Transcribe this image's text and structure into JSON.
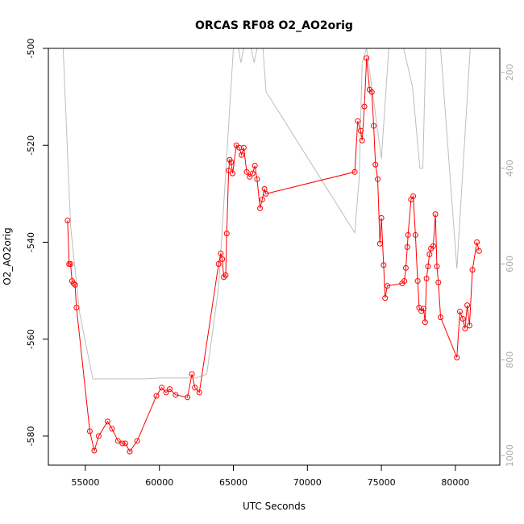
{
  "chart_data": {
    "type": "line",
    "title": "ORCAS RF08 O2_AO2orig",
    "xlabel": "UTC Seconds",
    "ylabel": "O2_AO2orig",
    "xlim": [
      52500,
      83000
    ],
    "ylim": [
      -586,
      -500
    ],
    "y2lim": [
      1020,
      150
    ],
    "x_ticks": [
      55000,
      60000,
      65000,
      70000,
      75000,
      80000
    ],
    "y_ticks": [
      -580,
      -560,
      -540,
      -520,
      -500
    ],
    "y2_ticks": [
      200,
      400,
      600,
      800,
      1000
    ],
    "grid": false,
    "legend": "none",
    "colors": {
      "o2": "#ff0000",
      "pressure": "#bebebe"
    },
    "series": [
      {
        "values": [
          {
            "x": 53800,
            "y": -535.5
          },
          {
            "x": 53900,
            "y": -544.5
          },
          {
            "x": 54000,
            "y": -544.5
          },
          {
            "x": 54100,
            "y": -548
          },
          {
            "x": 54200,
            "y": -548.5
          },
          {
            "x": 54300,
            "y": -548.8
          },
          {
            "x": 54400,
            "y": -553.5
          },
          {
            "x": 55300,
            "y": -579
          },
          {
            "x": 55600,
            "y": -583
          },
          {
            "x": 55900,
            "y": -580
          },
          {
            "x": 56500,
            "y": -577
          },
          {
            "x": 56800,
            "y": -578.5
          },
          {
            "x": 57200,
            "y": -581
          },
          {
            "x": 57500,
            "y": -581.5
          },
          {
            "x": 57700,
            "y": -581.5
          },
          {
            "x": 58000,
            "y": -583.2
          },
          {
            "x": 58500,
            "y": -581
          },
          {
            "x": 59800,
            "y": -571.7
          },
          {
            "x": 60150,
            "y": -570
          },
          {
            "x": 60450,
            "y": -571
          },
          {
            "x": 60700,
            "y": -570.3
          },
          {
            "x": 61100,
            "y": -571.5
          },
          {
            "x": 61900,
            "y": -572
          },
          {
            "x": 62200,
            "y": -567.2
          },
          {
            "x": 62400,
            "y": -570
          },
          {
            "x": 62700,
            "y": -571
          },
          {
            "x": 64000,
            "y": -544.5
          },
          {
            "x": 64150,
            "y": -542.3
          },
          {
            "x": 64250,
            "y": -543.5
          },
          {
            "x": 64350,
            "y": -547.2
          },
          {
            "x": 64480,
            "y": -546.8
          },
          {
            "x": 64550,
            "y": -538.2
          },
          {
            "x": 64680,
            "y": -525.2
          },
          {
            "x": 64750,
            "y": -523
          },
          {
            "x": 64850,
            "y": -523.5
          },
          {
            "x": 64950,
            "y": -525.8
          },
          {
            "x": 65200,
            "y": -520
          },
          {
            "x": 65400,
            "y": -520.5
          },
          {
            "x": 65550,
            "y": -522
          },
          {
            "x": 65700,
            "y": -520.5
          },
          {
            "x": 65900,
            "y": -525.5
          },
          {
            "x": 66100,
            "y": -526.5
          },
          {
            "x": 66300,
            "y": -525.8
          },
          {
            "x": 66450,
            "y": -524.2
          },
          {
            "x": 66600,
            "y": -527
          },
          {
            "x": 66800,
            "y": -533
          },
          {
            "x": 66950,
            "y": -531.2
          },
          {
            "x": 67100,
            "y": -529
          },
          {
            "x": 67200,
            "y": -530
          },
          {
            "x": 73200,
            "y": -525.5
          },
          {
            "x": 73400,
            "y": -515
          },
          {
            "x": 73600,
            "y": -517
          },
          {
            "x": 73700,
            "y": -519
          },
          {
            "x": 73850,
            "y": -512
          },
          {
            "x": 74000,
            "y": -502
          },
          {
            "x": 74200,
            "y": -508.5
          },
          {
            "x": 74350,
            "y": -509
          },
          {
            "x": 74480,
            "y": -516
          },
          {
            "x": 74600,
            "y": -524
          },
          {
            "x": 74750,
            "y": -527
          },
          {
            "x": 74900,
            "y": -540.3
          },
          {
            "x": 75000,
            "y": -535
          },
          {
            "x": 75150,
            "y": -544.7
          },
          {
            "x": 75250,
            "y": -551.5
          },
          {
            "x": 75400,
            "y": -549
          },
          {
            "x": 76400,
            "y": -548.5
          },
          {
            "x": 76550,
            "y": -548
          },
          {
            "x": 76650,
            "y": -545.3
          },
          {
            "x": 76750,
            "y": -541
          },
          {
            "x": 76800,
            "y": -538.5
          },
          {
            "x": 77000,
            "y": -531.2
          },
          {
            "x": 77150,
            "y": -530.5
          },
          {
            "x": 77300,
            "y": -538.5
          },
          {
            "x": 77450,
            "y": -548
          },
          {
            "x": 77550,
            "y": -553.5
          },
          {
            "x": 77700,
            "y": -554.2
          },
          {
            "x": 77850,
            "y": -553.7
          },
          {
            "x": 77950,
            "y": -556.5
          },
          {
            "x": 78050,
            "y": -547.5
          },
          {
            "x": 78150,
            "y": -545
          },
          {
            "x": 78250,
            "y": -542.5
          },
          {
            "x": 78350,
            "y": -541.3
          },
          {
            "x": 78500,
            "y": -540.8
          },
          {
            "x": 78650,
            "y": -534.2
          },
          {
            "x": 78750,
            "y": -545
          },
          {
            "x": 78850,
            "y": -548.3
          },
          {
            "x": 79000,
            "y": -555.5
          },
          {
            "x": 80100,
            "y": -563.8
          },
          {
            "x": 80300,
            "y": -554.3
          },
          {
            "x": 80500,
            "y": -555.8
          },
          {
            "x": 80650,
            "y": -557.8
          },
          {
            "x": 80800,
            "y": -553
          },
          {
            "x": 80950,
            "y": -557.2
          },
          {
            "x": 81150,
            "y": -545.7
          },
          {
            "x": 81450,
            "y": -540
          },
          {
            "x": 81600,
            "y": -541.8
          }
        ]
      },
      {
        "axis": "right",
        "values": [
          {
            "x": 53500,
            "y": 150
          },
          {
            "x": 54000,
            "y": 520
          },
          {
            "x": 54600,
            "y": 700
          },
          {
            "x": 55500,
            "y": 840
          },
          {
            "x": 56500,
            "y": 840
          },
          {
            "x": 58000,
            "y": 840
          },
          {
            "x": 59000,
            "y": 840
          },
          {
            "x": 60000,
            "y": 838
          },
          {
            "x": 62500,
            "y": 838
          },
          {
            "x": 63200,
            "y": 830
          },
          {
            "x": 64000,
            "y": 650
          },
          {
            "x": 64500,
            "y": 400
          },
          {
            "x": 65000,
            "y": 150
          },
          {
            "x": 65350,
            "y": 150
          },
          {
            "x": 65500,
            "y": 180
          },
          {
            "x": 65700,
            "y": 150
          },
          {
            "x": 66200,
            "y": 150
          },
          {
            "x": 66400,
            "y": 180
          },
          {
            "x": 66600,
            "y": 150
          },
          {
            "x": 67000,
            "y": 150
          },
          {
            "x": 67200,
            "y": 240
          },
          {
            "x": 73200,
            "y": 535
          },
          {
            "x": 73500,
            "y": 420
          },
          {
            "x": 73700,
            "y": 180
          },
          {
            "x": 74000,
            "y": 150
          },
          {
            "x": 75000,
            "y": 380
          },
          {
            "x": 75500,
            "y": 150
          },
          {
            "x": 76500,
            "y": 150
          },
          {
            "x": 77100,
            "y": 230
          },
          {
            "x": 77600,
            "y": 400
          },
          {
            "x": 77800,
            "y": 400
          },
          {
            "x": 78000,
            "y": 150
          },
          {
            "x": 78700,
            "y": 150
          },
          {
            "x": 79000,
            "y": 150
          },
          {
            "x": 80100,
            "y": 610
          },
          {
            "x": 81000,
            "y": 150
          },
          {
            "x": 81500,
            "y": 150
          }
        ]
      }
    ]
  }
}
